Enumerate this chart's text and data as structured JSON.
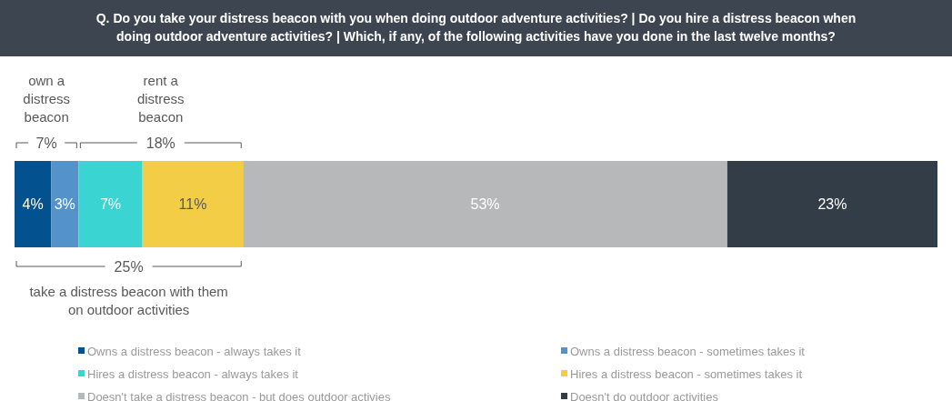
{
  "chart_data": {
    "type": "bar",
    "orientation": "horizontal",
    "stacked": true,
    "title": "Q. Do you take your distress beacon with you when doing outdoor adventure activities? | Do you hire a distress beacon when doing outdoor adventure activities? | Which, if any, of the following activities have you done in the last twelve months?",
    "categories": [
      null
    ],
    "series": [
      {
        "name": "Owns a distress beacon - always takes it",
        "color": "#03528f",
        "values": [
          4
        ],
        "value_labels": [
          "4%"
        ]
      },
      {
        "name": "Owns a distress beacon - sometimes takes it",
        "color": "#5393c9",
        "values": [
          3
        ],
        "value_labels": [
          "3%"
        ]
      },
      {
        "name": "Hires a distress beacon - always takes it",
        "color": "#3ad5d2",
        "values": [
          7
        ],
        "value_labels": [
          "7%"
        ]
      },
      {
        "name": "Hires a distress beacon - sometimes takes it",
        "color": "#f4cd46",
        "values": [
          11
        ],
        "value_labels": [
          "11%"
        ]
      },
      {
        "name": "Doesn't take a distress beacon - but does outdoor activies",
        "color": "#b7b8ba",
        "values": [
          53
        ],
        "value_labels": [
          "53%"
        ]
      },
      {
        "name": "Doesn't do outdoor activities",
        "color": "#333d48",
        "values": [
          23
        ],
        "value_labels": [
          "23%"
        ]
      }
    ],
    "legend": "bottom",
    "annotations": [
      "own a distress beacon",
      "7%",
      "rent a distress beacon",
      "18%",
      "25%",
      "take a distress beacon with them on outdoor activities"
    ]
  }
}
